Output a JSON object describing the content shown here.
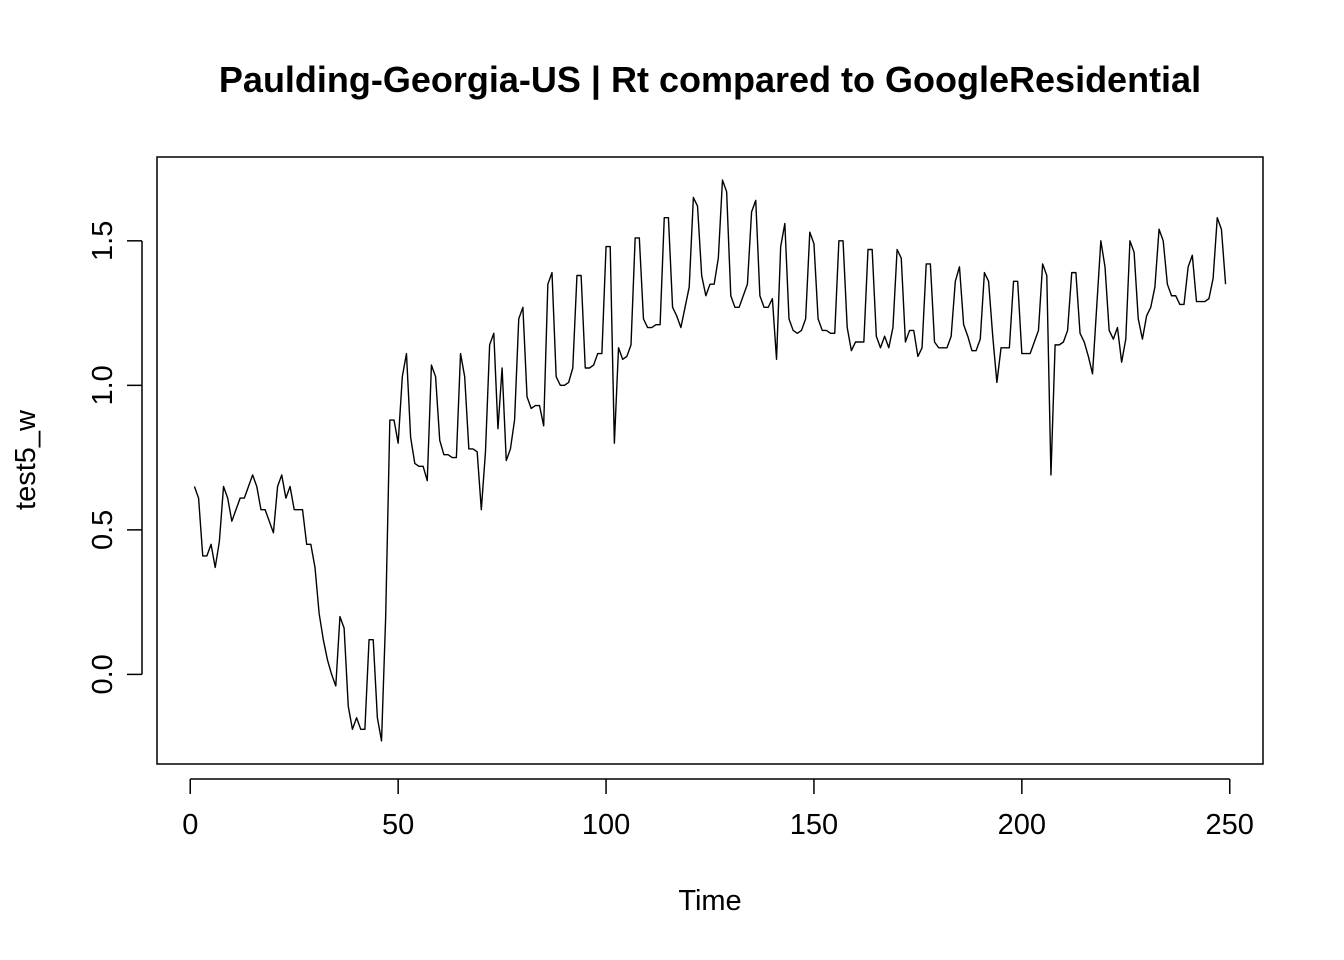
{
  "chart_data": {
    "type": "line",
    "title": "Paulding-Georgia-US | Rt compared to GoogleResidential",
    "xlabel": "Time",
    "ylabel": "test5_w",
    "xlim": [
      -8,
      258
    ],
    "ylim": [
      -0.31,
      1.79
    ],
    "x_ticks": [
      0,
      50,
      100,
      150,
      200,
      250
    ],
    "y_ticks": [
      0.0,
      0.5,
      1.0,
      1.5
    ],
    "grid": false,
    "legend": "none",
    "line_color": "#000000",
    "x_start": 1,
    "series": [
      {
        "values": [
          0.65,
          0.61,
          0.41,
          0.41,
          0.45,
          0.37,
          0.46,
          0.65,
          0.61,
          0.53,
          0.57,
          0.61,
          0.61,
          0.65,
          0.69,
          0.65,
          0.57,
          0.57,
          0.53,
          0.49,
          0.65,
          0.69,
          0.61,
          0.65,
          0.57,
          0.57,
          0.57,
          0.45,
          0.45,
          0.37,
          0.21,
          0.12,
          0.05,
          0.0,
          -0.04,
          0.2,
          0.16,
          -0.11,
          -0.19,
          -0.15,
          -0.19,
          -0.19,
          0.12,
          0.12,
          -0.15,
          -0.23,
          0.2,
          0.88,
          0.88,
          0.8,
          1.03,
          1.11,
          0.82,
          0.73,
          0.72,
          0.72,
          0.67,
          1.07,
          1.03,
          0.81,
          0.76,
          0.76,
          0.75,
          0.75,
          1.11,
          1.03,
          0.78,
          0.78,
          0.77,
          0.57,
          0.77,
          1.14,
          1.18,
          0.85,
          1.06,
          0.74,
          0.78,
          0.88,
          1.23,
          1.27,
          0.96,
          0.92,
          0.93,
          0.93,
          0.86,
          1.35,
          1.39,
          1.03,
          1.0,
          1.0,
          1.01,
          1.06,
          1.38,
          1.38,
          1.06,
          1.06,
          1.07,
          1.11,
          1.11,
          1.48,
          1.48,
          0.8,
          1.13,
          1.09,
          1.1,
          1.14,
          1.51,
          1.51,
          1.23,
          1.2,
          1.2,
          1.21,
          1.21,
          1.58,
          1.58,
          1.27,
          1.24,
          1.2,
          1.27,
          1.34,
          1.65,
          1.62,
          1.38,
          1.31,
          1.35,
          1.35,
          1.44,
          1.71,
          1.67,
          1.31,
          1.27,
          1.27,
          1.31,
          1.35,
          1.6,
          1.64,
          1.31,
          1.27,
          1.27,
          1.3,
          1.09,
          1.48,
          1.56,
          1.23,
          1.19,
          1.18,
          1.19,
          1.23,
          1.53,
          1.49,
          1.23,
          1.19,
          1.19,
          1.18,
          1.18,
          1.5,
          1.5,
          1.2,
          1.12,
          1.15,
          1.15,
          1.15,
          1.47,
          1.47,
          1.17,
          1.13,
          1.17,
          1.13,
          1.2,
          1.47,
          1.44,
          1.15,
          1.19,
          1.19,
          1.1,
          1.13,
          1.42,
          1.42,
          1.15,
          1.13,
          1.13,
          1.13,
          1.17,
          1.36,
          1.41,
          1.21,
          1.17,
          1.12,
          1.12,
          1.16,
          1.39,
          1.36,
          1.17,
          1.01,
          1.13,
          1.13,
          1.13,
          1.36,
          1.36,
          1.11,
          1.11,
          1.11,
          1.15,
          1.19,
          1.42,
          1.38,
          0.69,
          1.14,
          1.14,
          1.15,
          1.19,
          1.39,
          1.39,
          1.18,
          1.15,
          1.1,
          1.04,
          1.27,
          1.5,
          1.41,
          1.19,
          1.16,
          1.2,
          1.08,
          1.16,
          1.5,
          1.46,
          1.23,
          1.16,
          1.24,
          1.27,
          1.34,
          1.54,
          1.5,
          1.35,
          1.31,
          1.31,
          1.28,
          1.28,
          1.41,
          1.45,
          1.29,
          1.29,
          1.29,
          1.3,
          1.37,
          1.58,
          1.54,
          1.35
        ]
      }
    ]
  }
}
